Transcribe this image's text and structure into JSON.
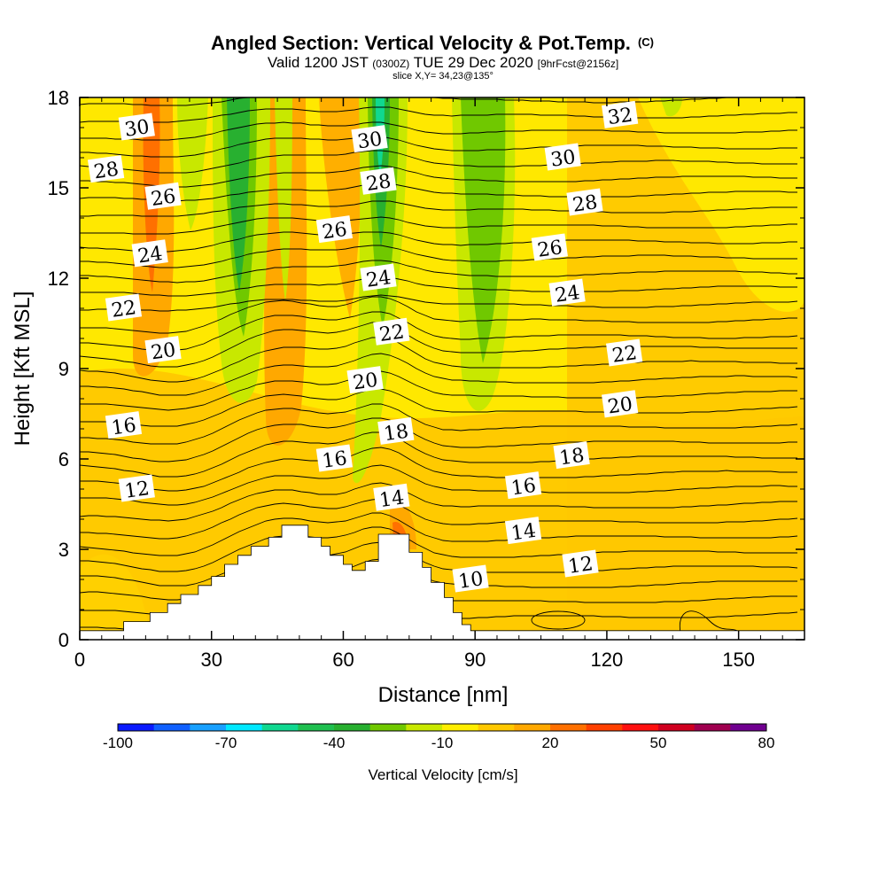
{
  "title": "Angled Section: Vertical Velocity & Pot.Temp.",
  "title_mark": "(C)",
  "subtitle_main_a": "Valid 1200 JST",
  "subtitle_small_a": "(0300Z)",
  "subtitle_main_b": "TUE 29 Dec 2020",
  "subtitle_small_b": "[9hrFcst@2156z]",
  "slice_text": "slice X,Y= 34,23@135°",
  "colorbar": {
    "label": "Vertical Velocity [cm/s]",
    "tick_labels": [
      "-100",
      "-70",
      "-40",
      "-10",
      "20",
      "50",
      "80"
    ],
    "colors": [
      "#0a1aff",
      "#1060ff",
      "#18a0ff",
      "#00e8ff",
      "#10d890",
      "#20c050",
      "#28b030",
      "#70c800",
      "#c8e800",
      "#ffee00",
      "#ffc800",
      "#ffa800",
      "#ff7000",
      "#ff4000",
      "#ff1010",
      "#d00020",
      "#a00050",
      "#700090"
    ]
  },
  "chart_data": {
    "type": "heatmap",
    "xlabel": "Distance [nm]",
    "ylabel": "Height [Kft MSL]",
    "xlim": [
      0,
      165
    ],
    "ylim": [
      0,
      18
    ],
    "x_ticks": [
      0,
      30,
      60,
      90,
      120,
      150
    ],
    "y_ticks": [
      0,
      3,
      6,
      9,
      12,
      15,
      18
    ],
    "x_tick_labels": [
      "0",
      "30",
      "60",
      "90",
      "120",
      "150"
    ],
    "y_tick_labels": [
      "0",
      "3",
      "6",
      "9",
      "12",
      "15",
      "18"
    ],
    "terrain": [
      [
        0,
        0.3
      ],
      [
        10,
        0.3
      ],
      [
        10,
        0.6
      ],
      [
        16,
        0.6
      ],
      [
        16,
        0.9
      ],
      [
        20,
        0.9
      ],
      [
        20,
        1.2
      ],
      [
        23,
        1.2
      ],
      [
        23,
        1.5
      ],
      [
        27,
        1.5
      ],
      [
        27,
        1.8
      ],
      [
        30,
        1.8
      ],
      [
        30,
        2.1
      ],
      [
        33,
        2.1
      ],
      [
        33,
        2.5
      ],
      [
        36,
        2.5
      ],
      [
        36,
        2.8
      ],
      [
        39,
        2.8
      ],
      [
        39,
        3.1
      ],
      [
        43,
        3.1
      ],
      [
        43,
        3.4
      ],
      [
        46,
        3.4
      ],
      [
        46,
        3.8
      ],
      [
        52,
        3.8
      ],
      [
        52,
        3.4
      ],
      [
        55,
        3.4
      ],
      [
        55,
        3.1
      ],
      [
        57,
        3.1
      ],
      [
        57,
        2.8
      ],
      [
        60,
        2.8
      ],
      [
        60,
        2.5
      ],
      [
        62,
        2.5
      ],
      [
        62,
        2.3
      ],
      [
        65,
        2.3
      ],
      [
        65,
        2.6
      ],
      [
        68,
        2.6
      ],
      [
        68,
        3.5
      ],
      [
        75,
        3.5
      ],
      [
        75,
        2.9
      ],
      [
        78,
        2.9
      ],
      [
        78,
        2.4
      ],
      [
        80,
        2.4
      ],
      [
        80,
        1.9
      ],
      [
        83,
        1.9
      ],
      [
        83,
        1.4
      ],
      [
        85,
        1.4
      ],
      [
        85,
        0.9
      ],
      [
        87,
        0.9
      ],
      [
        87,
        0.5
      ],
      [
        89,
        0.5
      ],
      [
        89,
        0.3
      ],
      [
        165,
        0.3
      ]
    ],
    "contour_labels": [
      {
        "text": "30",
        "x": 13,
        "y": 17.0
      },
      {
        "text": "28",
        "x": 6,
        "y": 15.6
      },
      {
        "text": "26",
        "x": 19,
        "y": 14.7
      },
      {
        "text": "24",
        "x": 16,
        "y": 12.8
      },
      {
        "text": "22",
        "x": 10,
        "y": 11.0
      },
      {
        "text": "20",
        "x": 19,
        "y": 9.6
      },
      {
        "text": "16",
        "x": 10,
        "y": 7.1
      },
      {
        "text": "12",
        "x": 13,
        "y": 5.0
      },
      {
        "text": "30",
        "x": 66,
        "y": 16.6
      },
      {
        "text": "28",
        "x": 68,
        "y": 15.2
      },
      {
        "text": "26",
        "x": 58,
        "y": 13.6
      },
      {
        "text": "24",
        "x": 68,
        "y": 12.0
      },
      {
        "text": "22",
        "x": 71,
        "y": 10.2
      },
      {
        "text": "20",
        "x": 65,
        "y": 8.6
      },
      {
        "text": "18",
        "x": 72,
        "y": 6.9
      },
      {
        "text": "16",
        "x": 58,
        "y": 6.0
      },
      {
        "text": "14",
        "x": 71,
        "y": 4.7
      },
      {
        "text": "10",
        "x": 89,
        "y": 2.0
      },
      {
        "text": "32",
        "x": 123,
        "y": 17.4
      },
      {
        "text": "30",
        "x": 110,
        "y": 16.0
      },
      {
        "text": "28",
        "x": 115,
        "y": 14.5
      },
      {
        "text": "26",
        "x": 107,
        "y": 13.0
      },
      {
        "text": "24",
        "x": 111,
        "y": 11.5
      },
      {
        "text": "22",
        "x": 124,
        "y": 9.5
      },
      {
        "text": "20",
        "x": 123,
        "y": 7.8
      },
      {
        "text": "18",
        "x": 112,
        "y": 6.1
      },
      {
        "text": "16",
        "x": 101,
        "y": 5.1
      },
      {
        "text": "14",
        "x": 101,
        "y": 3.6
      },
      {
        "text": "12",
        "x": 114,
        "y": 2.5
      }
    ]
  }
}
